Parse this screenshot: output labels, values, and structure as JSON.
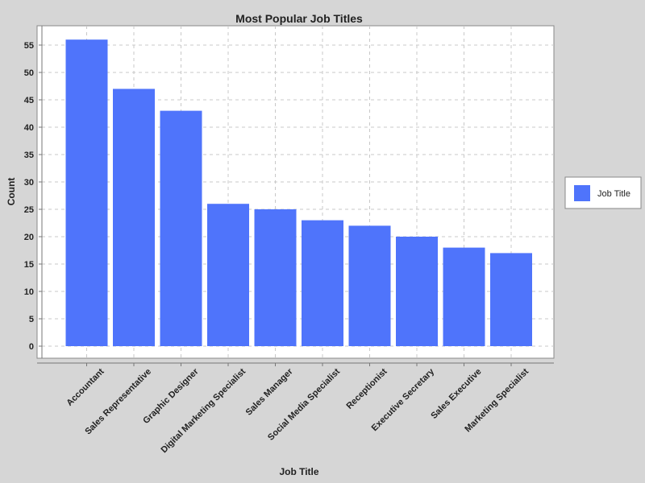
{
  "chart_data": {
    "type": "bar",
    "title": "Most Popular Job Titles",
    "xlabel": "Job Title",
    "ylabel": "Count",
    "categories": [
      "Accountant",
      "Sales Representative",
      "Graphic Designer",
      "Digital Marketing Specialist",
      "Sales Manager",
      "Social Media Specialist",
      "Receptionist",
      "Executive Secretary",
      "Sales Executive",
      "Marketing Specialist"
    ],
    "series": [
      {
        "name": "Job Title",
        "values": [
          56,
          47,
          43,
          26,
          25,
          23,
          22,
          20,
          18,
          17
        ]
      }
    ],
    "ylim": [
      0,
      55
    ],
    "yticks": [
      0,
      5,
      10,
      15,
      20,
      25,
      30,
      35,
      40,
      45,
      50,
      55
    ],
    "grid": true,
    "legend_position": "right",
    "colors": {
      "bar": "#4f74fb",
      "plot_background": "#ffffff",
      "figure_background": "#d6d6d6",
      "grid": "#c8c8c8"
    }
  }
}
